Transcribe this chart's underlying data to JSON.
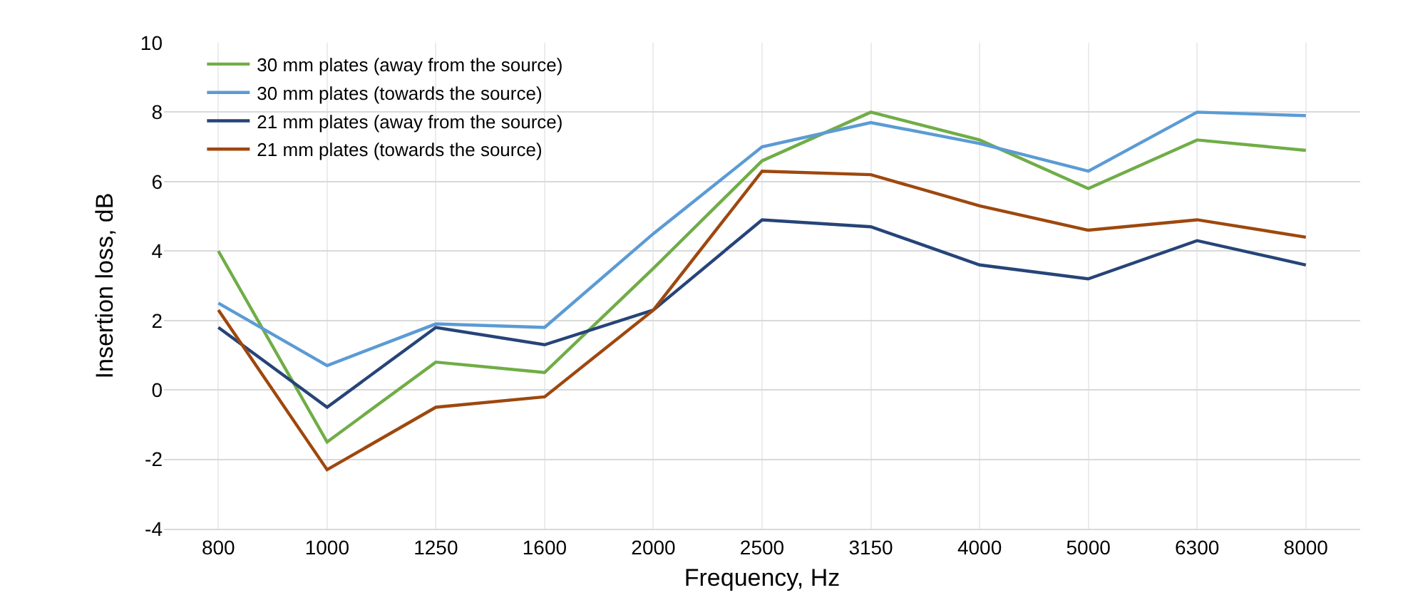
{
  "chart_data": {
    "type": "line",
    "xlabel": "Frequency, Hz",
    "ylabel": "Insertion loss, dB",
    "categories": [
      "800",
      "1000",
      "1250",
      "1600",
      "2000",
      "2500",
      "3150",
      "4000",
      "5000",
      "6300",
      "8000"
    ],
    "ylim": [
      -4,
      10
    ],
    "yticks": [
      -4,
      -2,
      0,
      2,
      4,
      6,
      8,
      10
    ],
    "grid": true,
    "legend": "top left",
    "line_style": "solid",
    "marker": "none",
    "series": [
      {
        "name": "30 mm plates (away from the source)",
        "color": "#70ad47",
        "values": [
          4.0,
          -1.5,
          0.8,
          0.5,
          3.5,
          6.6,
          8.0,
          7.2,
          5.8,
          7.2,
          6.9
        ]
      },
      {
        "name": "30 mm plates (towards the source)",
        "color": "#5b9bd5",
        "values": [
          2.5,
          0.7,
          1.9,
          1.8,
          4.5,
          7.0,
          7.7,
          7.1,
          6.3,
          8.0,
          7.9
        ]
      },
      {
        "name": "21 mm plates (away from the source)",
        "color": "#264478",
        "values": [
          1.8,
          -0.5,
          1.8,
          1.3,
          2.3,
          4.9,
          4.7,
          3.6,
          3.2,
          4.3,
          3.6
        ]
      },
      {
        "name": "21 mm plates (towards the source)",
        "color": "#9e480e",
        "values": [
          2.3,
          -2.3,
          -0.5,
          -0.2,
          2.3,
          6.3,
          6.2,
          5.3,
          4.6,
          4.9,
          4.4
        ]
      }
    ]
  }
}
